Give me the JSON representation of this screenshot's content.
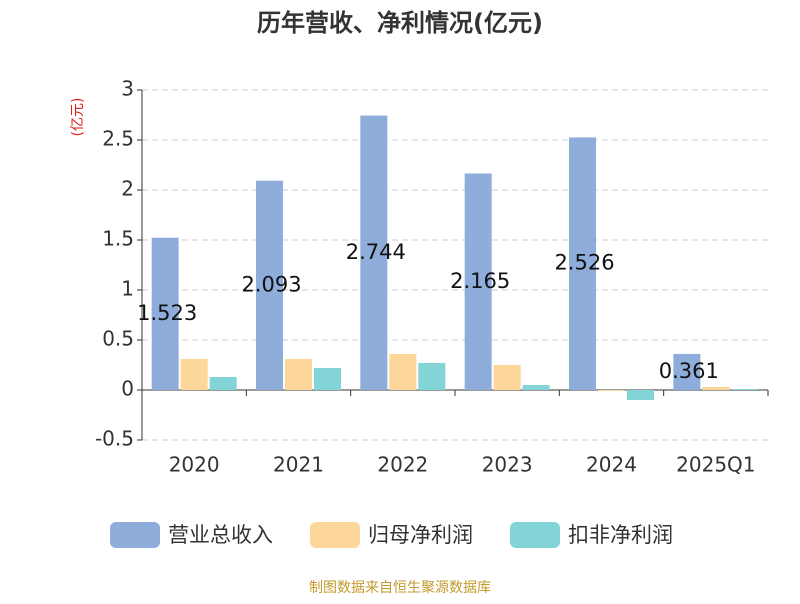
{
  "chart_data": {
    "type": "bar",
    "title": "历年营收、净利情况(亿元)",
    "y_label": "(亿元)",
    "categories": [
      "2020",
      "2021",
      "2022",
      "2023",
      "2024",
      "2025Q1"
    ],
    "series": [
      {
        "name": "营业总收入",
        "color": "#8eaddb",
        "values": [
          1.523,
          2.093,
          2.744,
          2.165,
          2.526,
          0.361
        ],
        "show_labels": true
      },
      {
        "name": "归母净利润",
        "color": "#fdd799",
        "values": [
          0.31,
          0.31,
          0.36,
          0.25,
          -0.01,
          0.03
        ],
        "show_labels": false
      },
      {
        "name": "扣非净利润",
        "color": "#83d4d6",
        "values": [
          0.13,
          0.22,
          0.27,
          0.05,
          -0.1,
          0.01
        ],
        "show_labels": false
      }
    ],
    "ylim": [
      -0.5,
      3
    ],
    "yticks": [
      -0.5,
      0,
      0.5,
      1,
      1.5,
      2,
      2.5,
      3
    ],
    "grid": true,
    "source": "制图数据来自恒生聚源数据库"
  }
}
